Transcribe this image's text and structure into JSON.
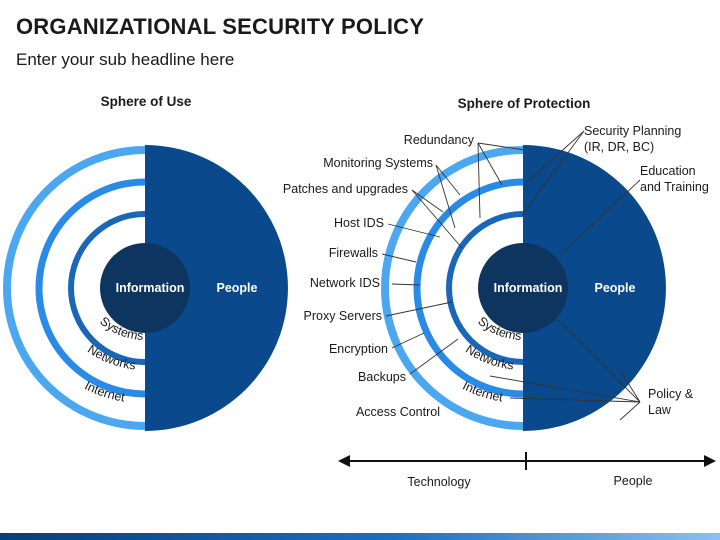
{
  "title": "ORGANIZATIONAL SECURITY POLICY",
  "subtitle": "Enter your sub headline here",
  "left": {
    "heading": "Sphere of Use",
    "center": "Information",
    "half": "People",
    "rings": [
      "Systems",
      "Networks",
      "Internet"
    ]
  },
  "right": {
    "heading": "Sphere of Protection",
    "center": "Information",
    "half": "People",
    "rings": [
      "Systems",
      "Networks",
      "Internet"
    ],
    "left_labels": [
      "Redundancy",
      "Monitoring Systems",
      "Patches and upgrades",
      "Host IDS",
      "Firewalls",
      "Network IDS",
      "Proxy Servers",
      "Encryption",
      "Backups",
      "Access Control"
    ],
    "right_labels": {
      "security_planning_1": "Security Planning",
      "security_planning_2": "(IR, DR, BC)",
      "education_1": "Education",
      "education_2": "and Training",
      "policy_1": "Policy &",
      "policy_2": "Law"
    }
  },
  "axis": {
    "left": "Technology",
    "right": "People"
  },
  "colors": {
    "dark": "#0a4a8c",
    "mid": "#2178d3",
    "light": "#4aa7f0",
    "center": "#0d3560"
  }
}
